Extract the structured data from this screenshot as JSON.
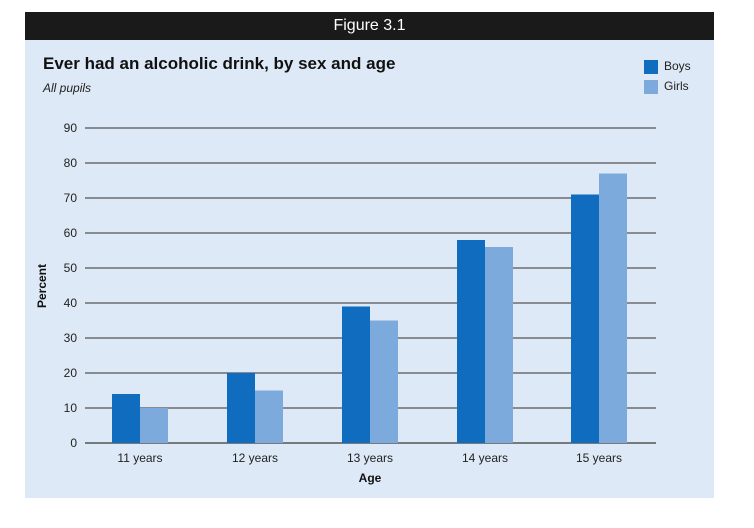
{
  "figure_label": "Figure 3.1",
  "colors": {
    "boys": "#0f6cbf",
    "girls": "#7caadc",
    "gridline": "#555555",
    "background": "#dde9f6"
  },
  "chart_data": {
    "type": "bar",
    "title": "Ever had an alcoholic drink, by sex and age",
    "subtitle": "All pupils",
    "xlabel": "Age",
    "ylabel": "Percent",
    "categories": [
      "11 years",
      "12 years",
      "13 years",
      "14 years",
      "15 years"
    ],
    "series": [
      {
        "name": "Boys",
        "values": [
          14,
          20,
          39,
          58,
          71
        ]
      },
      {
        "name": "Girls",
        "values": [
          10,
          15,
          35,
          56,
          77
        ]
      }
    ],
    "ylim": [
      0,
      90
    ],
    "yticks": [
      0,
      10,
      20,
      30,
      40,
      50,
      60,
      70,
      80,
      90
    ],
    "grid": true,
    "legend_position": "top-right"
  }
}
